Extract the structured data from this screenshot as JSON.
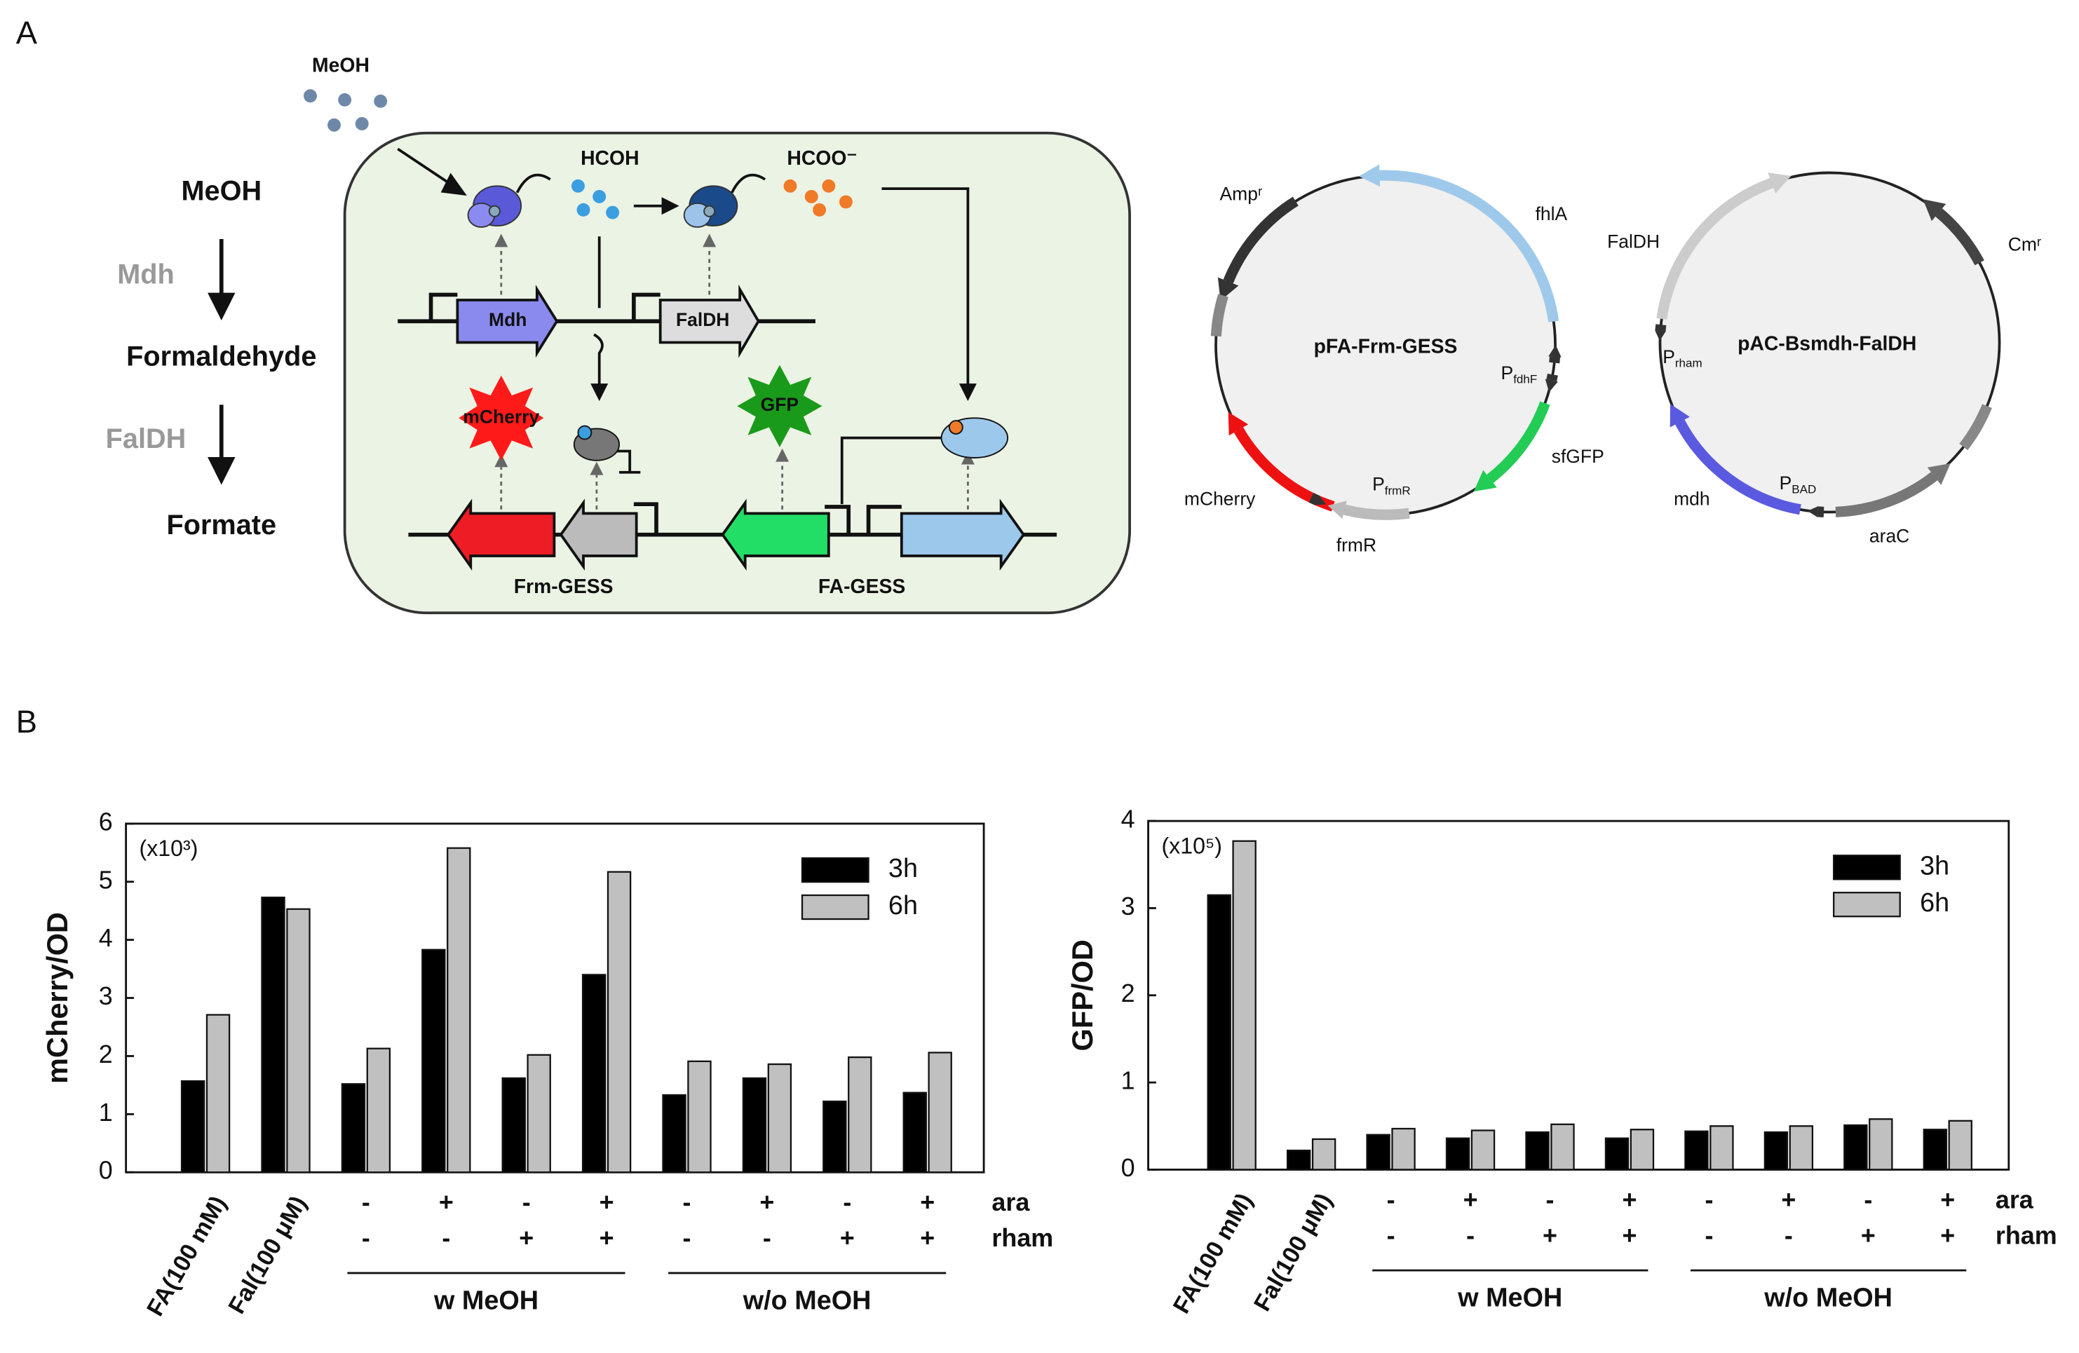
{
  "panels": [
    "A",
    "B"
  ],
  "pathway": {
    "substrate": "MeOH",
    "enzyme1": "Mdh",
    "intermediate": "Formaldehyde",
    "enzyme2": "FalDH",
    "product": "Formate"
  },
  "cell": {
    "outside": "MeOH",
    "hcoh": "HCOH",
    "hcoo": "HCOO⁻",
    "mdh": "Mdh",
    "faldh": "FalDH",
    "mcherry": "mCherry",
    "gfp": "GFP",
    "frm_gess": "Frm-GESS",
    "fa_gess": "FA-GESS"
  },
  "plasmid1": {
    "name": "pFA-Frm-GESS",
    "amp": "Ampʳ",
    "fhla": "fhlA",
    "pfdhf": {
      "main": "P",
      "sub": "fdhF"
    },
    "sfgfp": "sfGFP",
    "pfrmr": {
      "main": "P",
      "sub": "frmR"
    },
    "mcherry": "mCherry",
    "frmr": "frmR"
  },
  "plasmid2": {
    "name": "pAC-Bsmdh-FalDH",
    "faldh": "FalDH",
    "cm": "Cmʳ",
    "prham": {
      "main": "P",
      "sub": "rham"
    },
    "mdh": "mdh",
    "pbad": {
      "main": "P",
      "sub": "BAD"
    },
    "arac": "araC"
  },
  "chart_data": [
    {
      "type": "bar",
      "ylabel": "mCherry/OD",
      "multiplier": "(x10³)",
      "categories": [
        "FA(100 mM)",
        "Fal(100 μM)",
        null,
        null,
        null,
        null,
        null,
        null,
        null,
        null
      ],
      "series": [
        {
          "name": "3h",
          "color": "#000000",
          "values": [
            1.57,
            4.73,
            1.52,
            3.83,
            1.62,
            3.4,
            1.33,
            1.62,
            1.22,
            1.37
          ]
        },
        {
          "name": "6h",
          "color": "#c0c0c0",
          "values": [
            2.71,
            4.53,
            2.13,
            5.58,
            2.02,
            5.17,
            1.91,
            1.86,
            1.98,
            2.06
          ]
        }
      ],
      "ara": {
        "label": "ara",
        "values": [
          null,
          null,
          "-",
          "+",
          "-",
          "+",
          "-",
          "+",
          "-",
          "+"
        ]
      },
      "rham": {
        "label": "rham",
        "values": [
          null,
          null,
          "-",
          "-",
          "+",
          "+",
          "-",
          "-",
          "+",
          "+"
        ]
      },
      "groups": [
        "w MeOH",
        "w/o MeOH"
      ],
      "ylim": [
        0,
        6
      ],
      "yticks": [
        0,
        1,
        2,
        3,
        4,
        5,
        6
      ],
      "legend": "upper right"
    },
    {
      "type": "bar",
      "ylabel": "GFP/OD",
      "multiplier": "(x10⁵)",
      "categories": [
        "FA(100 mM)",
        "Fal(100 μM)",
        null,
        null,
        null,
        null,
        null,
        null,
        null,
        null
      ],
      "series": [
        {
          "name": "3h",
          "color": "#000000",
          "values": [
            3.15,
            0.22,
            0.4,
            0.36,
            0.43,
            0.36,
            0.44,
            0.43,
            0.51,
            0.46
          ]
        },
        {
          "name": "6h",
          "color": "#c0c0c0",
          "values": [
            3.77,
            0.35,
            0.47,
            0.45,
            0.52,
            0.46,
            0.5,
            0.5,
            0.58,
            0.56
          ]
        }
      ],
      "ara": {
        "label": "ara",
        "values": [
          null,
          null,
          "-",
          "+",
          "-",
          "+",
          "-",
          "+",
          "-",
          "+"
        ]
      },
      "rham": {
        "label": "rham",
        "values": [
          null,
          null,
          "-",
          "-",
          "+",
          "+",
          "-",
          "-",
          "+",
          "+"
        ]
      },
      "groups": [
        "w MeOH",
        "w/o MeOH"
      ],
      "ylim": [
        0,
        4
      ],
      "yticks": [
        0,
        1,
        2,
        3,
        4
      ],
      "legend": "upper right"
    }
  ]
}
